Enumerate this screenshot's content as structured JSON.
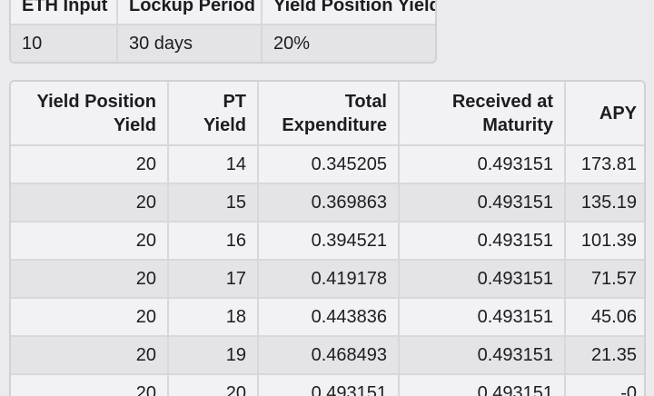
{
  "colors": {
    "page_bg": "#ebebed",
    "row_light": "#f2f2f4",
    "row_dark": "#e4e4e7",
    "border": "#d7d7dc",
    "text": "#1d1d1f"
  },
  "params_table": {
    "headers": [
      "ETH Input",
      "Lockup Period",
      "Yield Position Yield"
    ],
    "values": [
      "10",
      "30 days",
      "20%"
    ]
  },
  "results_table": {
    "headers": [
      "Yield Position Yield",
      "PT Yield",
      "Total Expenditure",
      "Received at Maturity",
      "APY"
    ],
    "rows": [
      [
        "20",
        "14",
        "0.345205",
        "0.493151",
        "173.81"
      ],
      [
        "20",
        "15",
        "0.369863",
        "0.493151",
        "135.19"
      ],
      [
        "20",
        "16",
        "0.394521",
        "0.493151",
        "101.39"
      ],
      [
        "20",
        "17",
        "0.419178",
        "0.493151",
        "71.57"
      ],
      [
        "20",
        "18",
        "0.443836",
        "0.493151",
        "45.06"
      ],
      [
        "20",
        "19",
        "0.468493",
        "0.493151",
        "21.35"
      ],
      [
        "20",
        "20",
        "0.493151",
        "0.493151",
        "-0"
      ]
    ]
  }
}
